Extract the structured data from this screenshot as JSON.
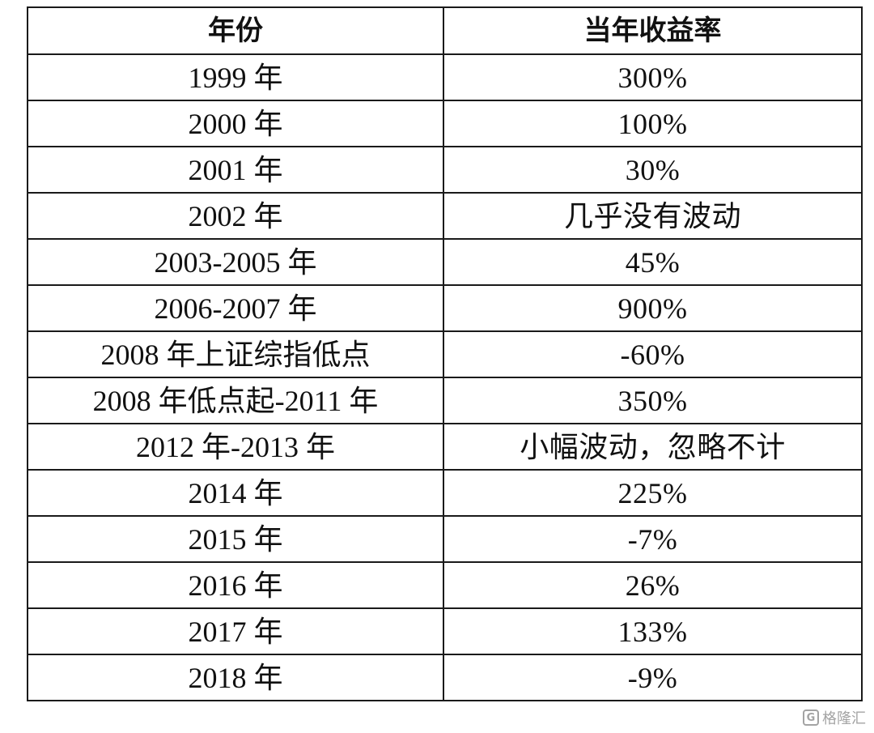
{
  "table": {
    "headers": [
      "年份",
      "当年收益率"
    ],
    "rows": [
      {
        "year": "1999 年",
        "return": "300%"
      },
      {
        "year": "2000 年",
        "return": "100%"
      },
      {
        "year": "2001 年",
        "return": "30%"
      },
      {
        "year": "2002 年",
        "return": "几乎没有波动"
      },
      {
        "year": "2003-2005 年",
        "return": "45%"
      },
      {
        "year": "2006-2007 年",
        "return": "900%"
      },
      {
        "year": "2008 年上证综指低点",
        "return": "-60%"
      },
      {
        "year": "2008 年低点起-2011 年",
        "return": "350%"
      },
      {
        "year": "2012 年-2013 年",
        "return": "小幅波动，忽略不计"
      },
      {
        "year": "2014 年",
        "return": "225%"
      },
      {
        "year": "2015 年",
        "return": "-7%"
      },
      {
        "year": "2016 年",
        "return": "26%"
      },
      {
        "year": "2017 年",
        "return": "133%"
      },
      {
        "year": "2018 年",
        "return": "-9%"
      }
    ]
  },
  "watermark": {
    "text": "格隆汇",
    "logo_letter": "G"
  }
}
